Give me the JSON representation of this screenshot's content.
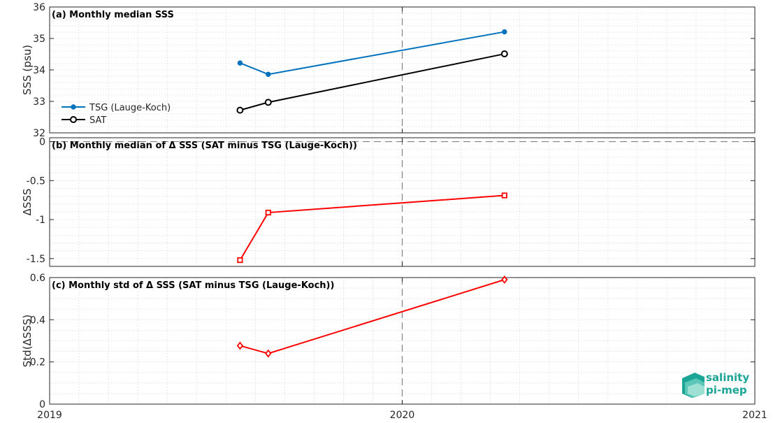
{
  "chart_data": [
    {
      "type": "line",
      "title": "(a) Monthly median SSS",
      "ylabel": "SSS (psu)",
      "ylim": [
        32,
        36
      ],
      "yticks": [
        "32",
        "33",
        "34",
        "35",
        "36"
      ],
      "grid": true,
      "legend_placement": "bottom-left",
      "series": [
        {
          "name": "TSG (Lauge-Koch)",
          "color": "#0072bd",
          "marker": "dot",
          "x": [
            2019.54,
            2019.62,
            2020.29
          ],
          "values": [
            34.22,
            33.86,
            35.21
          ]
        },
        {
          "name": "SAT",
          "color": "#000000",
          "marker": "circle",
          "x": [
            2019.54,
            2019.62,
            2020.29
          ],
          "values": [
            32.72,
            32.97,
            34.51
          ]
        }
      ]
    },
    {
      "type": "line",
      "title": "(b) Monthly median of Δ SSS (SAT minus TSG (Lauge-Koch))",
      "ylabel": "ΔSSS",
      "ylim": [
        -1.6,
        0.05
      ],
      "yticks": [
        "-1.5",
        "-1",
        "-0.5",
        "0"
      ],
      "grid": true,
      "series": [
        {
          "color": "#ff0000",
          "marker": "square",
          "x": [
            2019.54,
            2019.62,
            2020.29
          ],
          "values": [
            -1.52,
            -0.91,
            -0.69
          ]
        }
      ]
    },
    {
      "type": "line",
      "title": "(c) Monthly std of Δ SSS (SAT minus TSG (Lauge-Koch))",
      "ylabel": "Std(ΔSSS)",
      "ylim": [
        0,
        0.6
      ],
      "yticks": [
        "0",
        "0.2",
        "0.4",
        "0.6"
      ],
      "grid": true,
      "series": [
        {
          "color": "#ff0000",
          "marker": "diamond",
          "x": [
            2019.54,
            2019.62,
            2020.29
          ],
          "values": [
            0.277,
            0.24,
            0.59
          ]
        }
      ]
    }
  ],
  "xaxis": {
    "xlim": [
      2019,
      2021
    ],
    "ticks": [
      {
        "value": 2019,
        "label": "2019"
      },
      {
        "value": 2020,
        "label": "2020"
      },
      {
        "value": 2021,
        "label": "2021"
      }
    ],
    "vline": 2020
  },
  "logo": {
    "line1": "salinity",
    "line2": "pi-mep"
  }
}
